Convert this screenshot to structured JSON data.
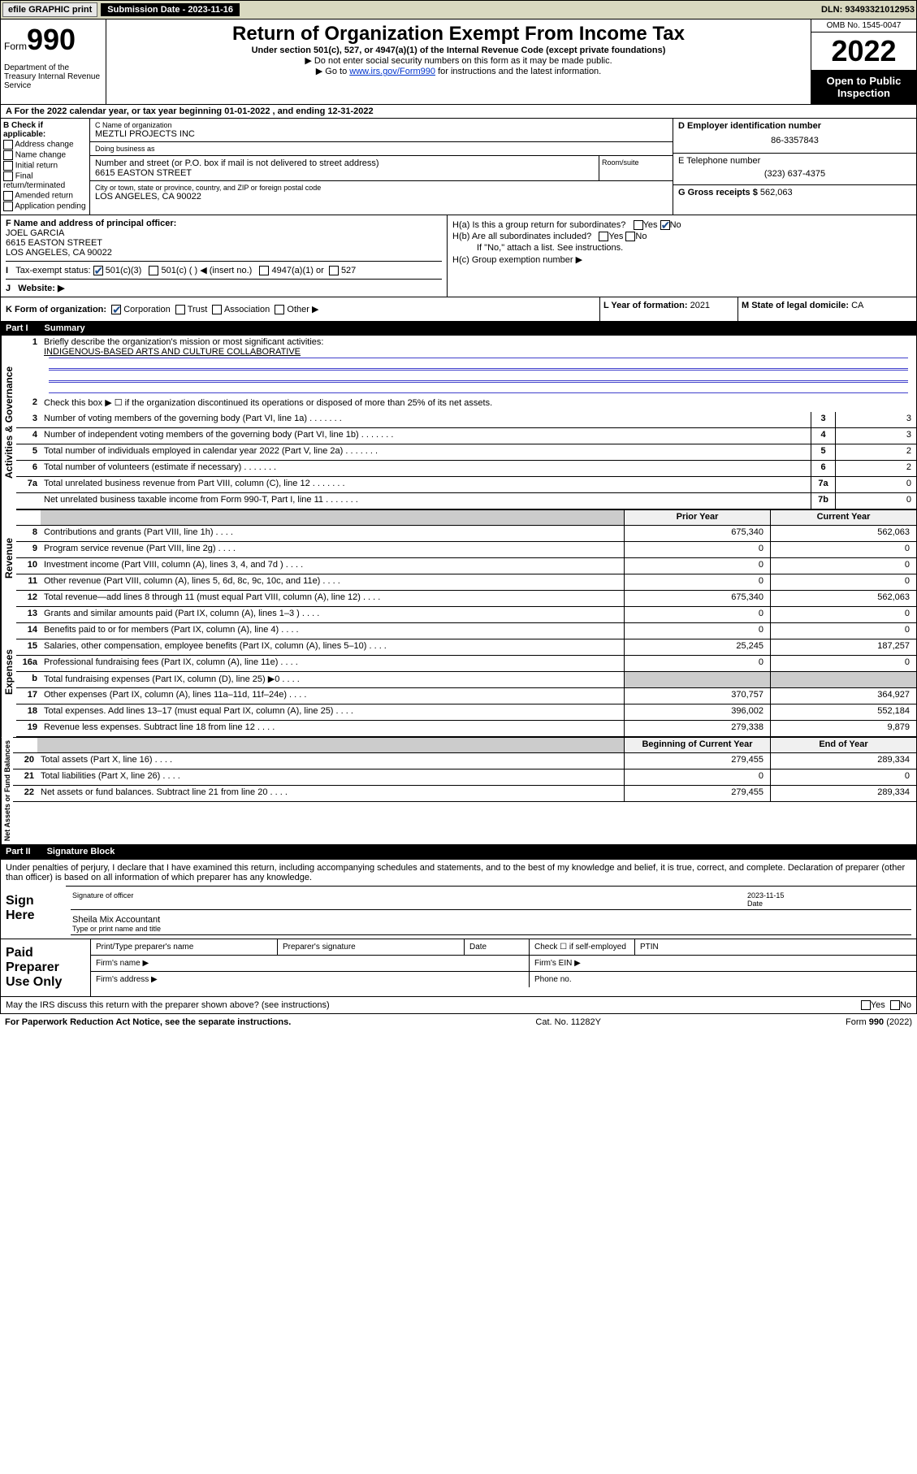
{
  "topbar": {
    "efile": "efile GRAPHIC print",
    "subdate_lbl": "Submission Date - 2023-11-16",
    "dln": "DLN: 93493321012953"
  },
  "header": {
    "form_word": "Form",
    "form_no": "990",
    "dept": "Department of the Treasury Internal Revenue Service",
    "title": "Return of Organization Exempt From Income Tax",
    "sub1": "Under section 501(c), 527, or 4947(a)(1) of the Internal Revenue Code (except private foundations)",
    "sub2": "▶ Do not enter social security numbers on this form as it may be made public.",
    "sub3_pre": "▶ Go to ",
    "sub3_link": "www.irs.gov/Form990",
    "sub3_post": " for instructions and the latest information.",
    "omb": "OMB No. 1545-0047",
    "year": "2022",
    "insp": "Open to Public Inspection"
  },
  "rowA": "For the 2022 calendar year, or tax year beginning 01-01-2022   , and ending 12-31-2022",
  "colB": {
    "hdr": "B Check if applicable:",
    "opts": [
      "Address change",
      "Name change",
      "Initial return",
      "Final return/terminated",
      "Amended return",
      "Application pending"
    ]
  },
  "colC": {
    "name_lbl": "C Name of organization",
    "name": "MEZTLI PROJECTS INC",
    "dba_lbl": "Doing business as",
    "dba": "",
    "addr_lbl": "Number and street (or P.O. box if mail is not delivered to street address)",
    "addr": "6615 EASTON STREET",
    "suite_lbl": "Room/suite",
    "city_lbl": "City or town, state or province, country, and ZIP or foreign postal code",
    "city": "LOS ANGELES, CA  90022"
  },
  "colD": {
    "ein_lbl": "D Employer identification number",
    "ein": "86-3357843",
    "tel_lbl": "E Telephone number",
    "tel": "(323) 637-4375",
    "gross_lbl": "G Gross receipts $",
    "gross": "562,063"
  },
  "rowF": {
    "lbl": "F  Name and address of principal officer:",
    "name": "JOEL GARCIA",
    "addr1": "6615 EASTON STREET",
    "addr2": "LOS ANGELES, CA  90022"
  },
  "rowH": {
    "ha": "H(a)  Is this a group return for subordinates?",
    "hb": "H(b)  Are all subordinates included?",
    "hb_note": "If \"No,\" attach a list. See instructions.",
    "hc": "H(c)  Group exemption number ▶"
  },
  "rowI": {
    "lbl": "Tax-exempt status:",
    "o1": "501(c)(3)",
    "o2": "501(c) (  ) ◀ (insert no.)",
    "o3": "4947(a)(1) or",
    "o4": "527"
  },
  "rowJ": "Website: ▶",
  "rowK": {
    "lbl": "K Form of organization:",
    "o1": "Corporation",
    "o2": "Trust",
    "o3": "Association",
    "o4": "Other ▶",
    "yof_lbl": "L Year of formation:",
    "yof": "2021",
    "dom_lbl": "M State of legal domicile:",
    "dom": "CA"
  },
  "part1": {
    "num": "Part I",
    "title": "Summary"
  },
  "summary": {
    "gov": {
      "label": "Activities & Governance",
      "l1_lbl": "Briefly describe the organization's mission or most significant activities:",
      "l1_val": "INDIGENOUS-BASED ARTS AND CULTURE COLLABORATIVE",
      "l2": "Check this box ▶ ☐  if the organization discontinued its operations or disposed of more than 25% of its net assets.",
      "rows": [
        {
          "n": "3",
          "t": "Number of voting members of the governing body (Part VI, line 1a)",
          "nb": "3",
          "v": "3"
        },
        {
          "n": "4",
          "t": "Number of independent voting members of the governing body (Part VI, line 1b)",
          "nb": "4",
          "v": "3"
        },
        {
          "n": "5",
          "t": "Total number of individuals employed in calendar year 2022 (Part V, line 2a)",
          "nb": "5",
          "v": "2"
        },
        {
          "n": "6",
          "t": "Total number of volunteers (estimate if necessary)",
          "nb": "6",
          "v": "2"
        },
        {
          "n": "7a",
          "t": "Total unrelated business revenue from Part VIII, column (C), line 12",
          "nb": "7a",
          "v": "0"
        },
        {
          "n": "",
          "t": "Net unrelated business taxable income from Form 990-T, Part I, line 11",
          "nb": "7b",
          "v": "0"
        }
      ]
    },
    "rev": {
      "label": "Revenue",
      "hdr_py": "Prior Year",
      "hdr_cy": "Current Year",
      "rows": [
        {
          "n": "8",
          "t": "Contributions and grants (Part VIII, line 1h)",
          "py": "675,340",
          "cy": "562,063"
        },
        {
          "n": "9",
          "t": "Program service revenue (Part VIII, line 2g)",
          "py": "0",
          "cy": "0"
        },
        {
          "n": "10",
          "t": "Investment income (Part VIII, column (A), lines 3, 4, and 7d )",
          "py": "0",
          "cy": "0"
        },
        {
          "n": "11",
          "t": "Other revenue (Part VIII, column (A), lines 5, 6d, 8c, 9c, 10c, and 11e)",
          "py": "0",
          "cy": "0"
        },
        {
          "n": "12",
          "t": "Total revenue—add lines 8 through 11 (must equal Part VIII, column (A), line 12)",
          "py": "675,340",
          "cy": "562,063"
        }
      ]
    },
    "exp": {
      "label": "Expenses",
      "rows": [
        {
          "n": "13",
          "t": "Grants and similar amounts paid (Part IX, column (A), lines 1–3 )",
          "py": "0",
          "cy": "0"
        },
        {
          "n": "14",
          "t": "Benefits paid to or for members (Part IX, column (A), line 4)",
          "py": "0",
          "cy": "0"
        },
        {
          "n": "15",
          "t": "Salaries, other compensation, employee benefits (Part IX, column (A), lines 5–10)",
          "py": "25,245",
          "cy": "187,257"
        },
        {
          "n": "16a",
          "t": "Professional fundraising fees (Part IX, column (A), line 11e)",
          "py": "0",
          "cy": "0"
        },
        {
          "n": "b",
          "t": "Total fundraising expenses (Part IX, column (D), line 25) ▶0",
          "py": "",
          "cy": "",
          "gray": true
        },
        {
          "n": "17",
          "t": "Other expenses (Part IX, column (A), lines 11a–11d, 11f–24e)",
          "py": "370,757",
          "cy": "364,927"
        },
        {
          "n": "18",
          "t": "Total expenses. Add lines 13–17 (must equal Part IX, column (A), line 25)",
          "py": "396,002",
          "cy": "552,184"
        },
        {
          "n": "19",
          "t": "Revenue less expenses. Subtract line 18 from line 12",
          "py": "279,338",
          "cy": "9,879"
        }
      ]
    },
    "net": {
      "label": "Net Assets or Fund Balances",
      "hdr_py": "Beginning of Current Year",
      "hdr_cy": "End of Year",
      "rows": [
        {
          "n": "20",
          "t": "Total assets (Part X, line 16)",
          "py": "279,455",
          "cy": "289,334"
        },
        {
          "n": "21",
          "t": "Total liabilities (Part X, line 26)",
          "py": "0",
          "cy": "0"
        },
        {
          "n": "22",
          "t": "Net assets or fund balances. Subtract line 21 from line 20",
          "py": "279,455",
          "cy": "289,334"
        }
      ]
    }
  },
  "part2": {
    "num": "Part II",
    "title": "Signature Block"
  },
  "sig": {
    "decl": "Under penalties of perjury, I declare that I have examined this return, including accompanying schedules and statements, and to the best of my knowledge and belief, it is true, correct, and complete. Declaration of preparer (other than officer) is based on all information of which preparer has any knowledge.",
    "here": "Sign Here",
    "sig_lbl": "Signature of officer",
    "date_lbl": "Date",
    "date": "2023-11-15",
    "name": "Sheila Mix Accountant",
    "name_lbl": "Type or print name and title",
    "paid": "Paid Preparer Use Only",
    "pt_name": "Print/Type preparer's name",
    "p_sig": "Preparer's signature",
    "p_date": "Date",
    "p_check": "Check ☐ if self-employed",
    "ptin": "PTIN",
    "fname": "Firm's name  ▶",
    "faddr": "Firm's address ▶",
    "fein": "Firm's EIN ▶",
    "phone": "Phone no.",
    "may": "May the IRS discuss this return with the preparer shown above? (see instructions)"
  },
  "footer": {
    "l": "For Paperwork Reduction Act Notice, see the separate instructions.",
    "m": "Cat. No. 11282Y",
    "r": "Form 990 (2022)"
  },
  "yn": {
    "yes": "Yes",
    "no": "No"
  }
}
